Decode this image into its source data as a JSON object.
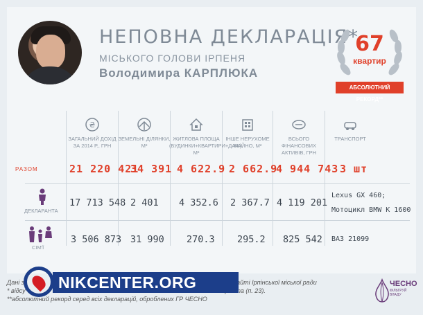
{
  "header": {
    "title": "НЕПОВНА ДЕКЛАРАЦІЯ*",
    "subtitle": "МІСЬКОГО ГОЛОВИ ІРПЕНЯ",
    "name": "Володимира КАРПЛЮКА"
  },
  "badge": {
    "rank": "67",
    "rank_label": "квартир",
    "ribbon": "АБСОЛЮТНИЙ РЕКОРД**"
  },
  "columns": [
    {
      "label": "ЗАГАЛЬНИЙ ДОХІД ЗА 2014 Р., ГРН",
      "icon": "money-icon"
    },
    {
      "label": "ЗЕМЕЛЬНІ ДІЛЯНКИ, М²",
      "icon": "land-icon"
    },
    {
      "label": "ЖИТЛОВА ПЛОЩА (БУДИНКИ+КВАРТИРИ+ДАЧІ), М²",
      "icon": "house-icon"
    },
    {
      "label": "ІНШЕ НЕРУХОМЕ МАЙНО, М²",
      "icon": "building-icon"
    },
    {
      "label": "ВСЬОГО ФІНАНСОВИХ АКТИВІВ, ГРН",
      "icon": "wallet-icon"
    },
    {
      "label": "ТРАНСПОРТ",
      "icon": "car-icon"
    }
  ],
  "totals": {
    "label": "РАЗОМ",
    "values": [
      "21 220 421",
      "34 391",
      "4 622.9",
      "2 662.9",
      "4 944 743",
      "3 шт"
    ]
  },
  "rows": [
    {
      "label": "ДЕКЛАРАНТА",
      "icon": "person-icon",
      "values": [
        "17 713 548",
        "2 401",
        "4 352.6",
        "2 367.7",
        "4 119 201"
      ],
      "transport": [
        "Lexus GX 460;",
        "Мотоцикл BMW K 1600"
      ]
    },
    {
      "label": "СІМ'Ї",
      "icon": "family-icon",
      "values": [
        "3 506 873",
        "31 990",
        "270.3",
        "295.2",
        "825 542"
      ],
      "transport": [
        "ВАЗ 21099"
      ]
    }
  ],
  "footer": {
    "line1": "Дані з                                                                                    ленної на офіційному сайті Ірпінської міської ради",
    "line2": "* відсу                                                                                            ділянок декларанта (п. 23).",
    "line3": "**абсолютний рекорд серед всіх декларацій, оброблених ГР ЧЕСНО"
  },
  "watermark": {
    "text": "NIKCENTER.ORG"
  },
  "logo": {
    "name": "ЧЕСНО",
    "sub": "ФІЛЬТРУЙ ВЛАДУ"
  },
  "colors": {
    "accent": "#e0402a",
    "muted": "#8a95a1",
    "text": "#3d4650",
    "watermark": "#1c3e8a"
  }
}
